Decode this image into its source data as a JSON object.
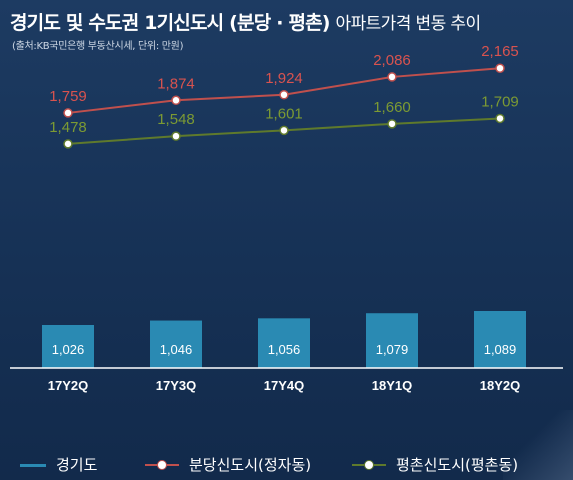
{
  "header": {
    "title_main": "경기도 및 수도권 1기신도시 (분당 · 평촌)",
    "title_sub": "아파트가격 변동 추이",
    "source": "(출처:KB국민은행 부동산시세, 단위: 만원)"
  },
  "colors": {
    "bar": "#2a8ab3",
    "bar_label": "#ffffff",
    "line_bundang": "#c0504d",
    "label_bundang": "#d9534f",
    "line_pyeongchon": "#5f7a2c",
    "label_pyeongchon": "#7c9a33",
    "axis": "#ffffff"
  },
  "chart_data": {
    "type": "bar+line",
    "categories": [
      "17Y2Q",
      "17Y3Q",
      "17Y4Q",
      "18Y1Q",
      "18Y2Q"
    ],
    "series": [
      {
        "name": "경기도",
        "type": "bar",
        "values": [
          1026,
          1046,
          1056,
          1079,
          1089
        ],
        "labels": [
          "1,026",
          "1,046",
          "1,056",
          "1,079",
          "1,089"
        ]
      },
      {
        "name": "분당신도시(정자동)",
        "type": "line",
        "values": [
          1759,
          1874,
          1924,
          2086,
          2165
        ],
        "labels": [
          "1,759",
          "1,874",
          "1,924",
          "2,086",
          "2,165"
        ]
      },
      {
        "name": "평촌신도시(평촌동)",
        "type": "line",
        "values": [
          1478,
          1548,
          1601,
          1660,
          1709
        ],
        "labels": [
          "1,478",
          "1,548",
          "1,601",
          "1,660",
          "1,709"
        ]
      }
    ],
    "legend_position": "bottom",
    "grid": false
  }
}
